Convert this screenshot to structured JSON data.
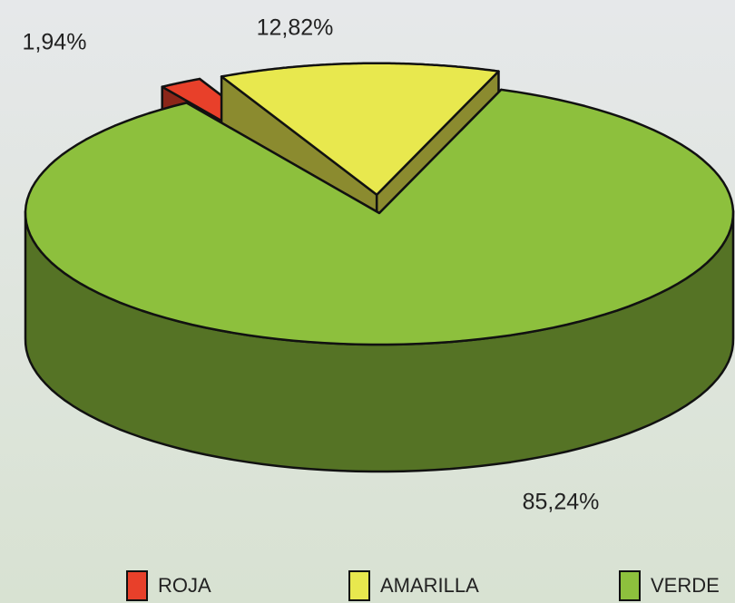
{
  "chart_data": {
    "type": "pie",
    "categories": [
      "ROJA",
      "AMARILLA",
      "VERDE"
    ],
    "values": [
      1.94,
      12.82,
      85.24
    ],
    "value_labels": [
      "1,94%",
      "12,82%",
      "85,24%"
    ],
    "colors": [
      "#e8402a",
      "#e8e84e",
      "#8dc03d"
    ],
    "legend": "bottom"
  }
}
